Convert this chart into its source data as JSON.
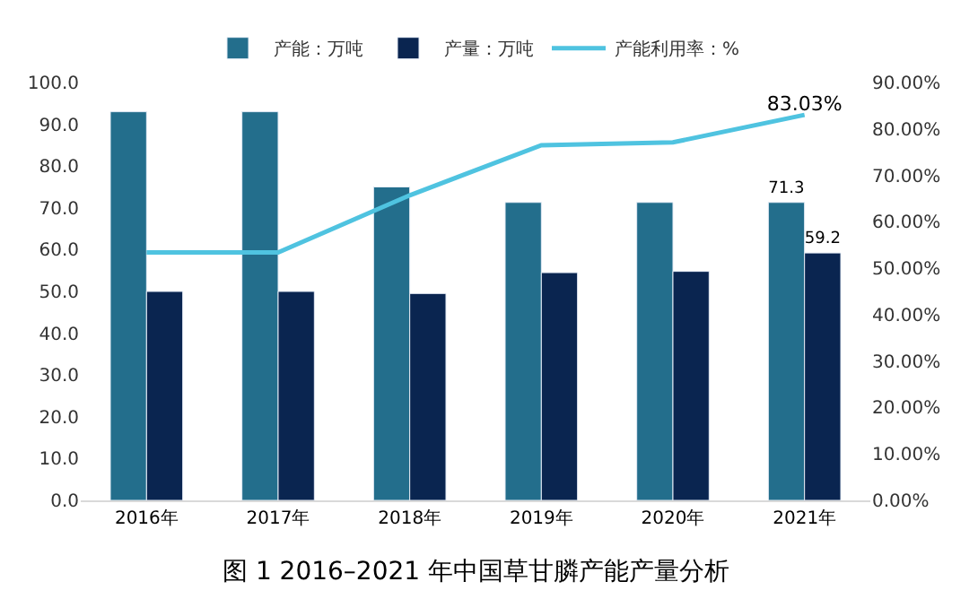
{
  "chart_data": {
    "type": "bar",
    "categories": [
      "2016年",
      "2017年",
      "2018年",
      "2019年",
      "2020年",
      "2021年"
    ],
    "series": [
      {
        "name": "产能：万吨",
        "color": "#236e8c",
        "values": [
          93.0,
          93.0,
          75.0,
          71.3,
          71.3,
          71.3
        ],
        "value_labels": [
          null,
          null,
          null,
          null,
          null,
          "71.3"
        ]
      },
      {
        "name": "产量：万吨",
        "color": "#0a2550",
        "values": [
          50.0,
          50.0,
          49.5,
          54.5,
          54.8,
          59.2
        ],
        "value_labels": [
          null,
          null,
          null,
          null,
          null,
          "59.2"
        ]
      },
      {
        "name": "产能利用率：%",
        "type": "line",
        "axis": "y2",
        "color": "#4fc3e0",
        "values": [
          53.4,
          53.4,
          65.7,
          76.5,
          77.1,
          83.03
        ],
        "value_labels": [
          null,
          null,
          null,
          null,
          null,
          "83.03%"
        ]
      }
    ],
    "ylim": [
      0,
      100
    ],
    "yticks": [
      {
        "value": 0,
        "label": "0.0"
      },
      {
        "value": 10,
        "label": "10.0"
      },
      {
        "value": 20,
        "label": "20.0"
      },
      {
        "value": 30,
        "label": "30.0"
      },
      {
        "value": 40,
        "label": "40.0"
      },
      {
        "value": 50,
        "label": "50.0"
      },
      {
        "value": 60,
        "label": "60.0"
      },
      {
        "value": 70,
        "label": "70.0"
      },
      {
        "value": 80,
        "label": "80.0"
      },
      {
        "value": 90,
        "label": "90.0"
      },
      {
        "value": 100,
        "label": "100.0"
      }
    ],
    "y2lim": [
      0,
      90
    ],
    "y2ticks": [
      {
        "value": 0,
        "label": "0.00%"
      },
      {
        "value": 10,
        "label": "10.00%"
      },
      {
        "value": 20,
        "label": "20.00%"
      },
      {
        "value": 30,
        "label": "30.00%"
      },
      {
        "value": 40,
        "label": "40.00%"
      },
      {
        "value": 50,
        "label": "50.00%"
      },
      {
        "value": 60,
        "label": "60.00%"
      },
      {
        "value": 70,
        "label": "70.00%"
      },
      {
        "value": 80,
        "label": "80.00%"
      },
      {
        "value": 90,
        "label": "90.00%"
      }
    ],
    "legend": "top",
    "marker": "none",
    "line_style": "solid",
    "annotations": [
      "图 1 2016–2021 年中国草甘膦产能产量分析"
    ]
  }
}
